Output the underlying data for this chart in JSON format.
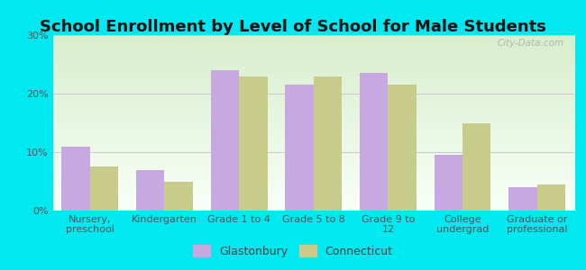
{
  "title": "School Enrollment by Level of School for Male Students",
  "categories": [
    "Nursery,\npreschool",
    "Kindergarten",
    "Grade 1 to 4",
    "Grade 5 to 8",
    "Grade 9 to\n12",
    "College\nundergrad",
    "Graduate or\nprofessional"
  ],
  "glastonbury": [
    11,
    7,
    24,
    21.5,
    23.5,
    9.5,
    4
  ],
  "connecticut": [
    7.5,
    5,
    23,
    23,
    21.5,
    15,
    4.5
  ],
  "glastonbury_color": "#c8a8e0",
  "connecticut_color": "#c8cc8a",
  "background_color": "#00e8f0",
  "plot_bg_top": "#d8eecc",
  "plot_bg_bottom": "#f8fff8",
  "bar_width": 0.38,
  "ylim": [
    0,
    30
  ],
  "yticks": [
    0,
    10,
    20,
    30
  ],
  "ytick_labels": [
    "0%",
    "10%",
    "20%",
    "30%"
  ],
  "title_fontsize": 13,
  "tick_fontsize": 8,
  "legend_fontsize": 9,
  "watermark": "City-Data.com"
}
